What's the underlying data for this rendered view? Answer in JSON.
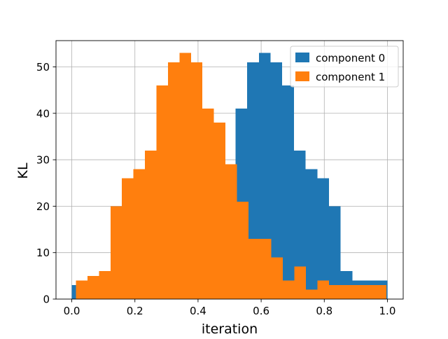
{
  "chart_data": {
    "type": "bar",
    "subtype": "histogram",
    "title": "",
    "xlabel": "iteration",
    "ylabel": "KL",
    "xlim": [
      -0.05,
      1.05
    ],
    "ylim": [
      0,
      55.65
    ],
    "xticks": [
      0.0,
      0.2,
      0.4,
      0.6,
      0.8,
      1.0
    ],
    "xtick_labels": [
      "0.0",
      "0.2",
      "0.4",
      "0.6",
      "0.8",
      "1.0"
    ],
    "yticks": [
      0,
      10,
      20,
      30,
      40,
      50
    ],
    "ytick_labels": [
      "0",
      "10",
      "20",
      "30",
      "40",
      "50"
    ],
    "grid": true,
    "legend_position": "upper right",
    "series": [
      {
        "name": "component 0",
        "color": "#1f77b4",
        "bin_start": 0.0,
        "bin_width": 0.03704,
        "values": [
          3,
          0,
          0,
          0,
          0,
          0,
          0,
          0,
          0,
          0,
          0,
          0,
          0,
          0,
          41,
          51,
          53,
          51,
          46,
          32,
          28,
          26,
          20,
          6,
          4,
          4,
          4
        ]
      },
      {
        "name": "component 1",
        "color": "#ff7f0e",
        "bin_start": 0.0133,
        "bin_width": 0.03642,
        "values": [
          4,
          5,
          6,
          20,
          26,
          28,
          32,
          46,
          51,
          53,
          51,
          41,
          38,
          29,
          21,
          13,
          13,
          9,
          4,
          7,
          2,
          4,
          3,
          3,
          3,
          3,
          3
        ]
      }
    ]
  }
}
